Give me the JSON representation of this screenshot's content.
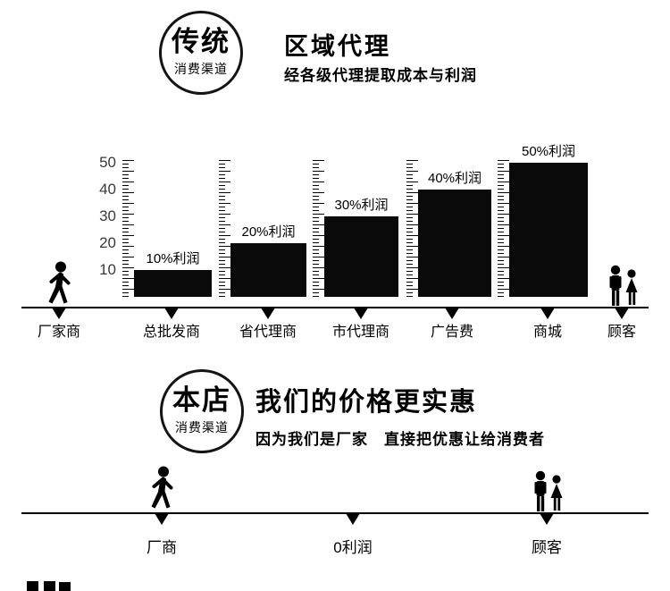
{
  "top": {
    "badge": {
      "line1": "传统",
      "line2": "消费渠道"
    }
  },
  "chart_data": {
    "type": "bar",
    "title": "区域代理",
    "subtitle": "经各级代理提取成本与利润",
    "categories": [
      "厂家商",
      "总批发商",
      "省代理商",
      "市代理商",
      "广告费",
      "商城",
      "顾客"
    ],
    "values": [
      null,
      10,
      20,
      30,
      40,
      50,
      null
    ],
    "bar_labels": [
      null,
      "10%利润",
      "20%利润",
      "30%利润",
      "40%利润",
      "50%利润",
      null
    ],
    "yticks": [
      50,
      40,
      30,
      20,
      10
    ],
    "ylim": [
      0,
      52
    ],
    "xlabel": "",
    "ylabel": "",
    "grid": false,
    "legend_position": "none"
  },
  "bottom": {
    "badge": {
      "line1": "本店",
      "line2": "消费渠道"
    },
    "title": "我们的价格更实惠",
    "subtitle": "因为我们是厂家　直接把优惠让给消费者",
    "stations": [
      "厂商",
      "0利润",
      "顾客"
    ]
  },
  "icons": {
    "top_left": "walking-person-icon",
    "top_right": "customer-couple-icon",
    "bottom_left": "walking-person-icon",
    "bottom_right": "customer-couple-icon"
  },
  "colors": {
    "ink": "#000000",
    "background": "#ffffff"
  }
}
